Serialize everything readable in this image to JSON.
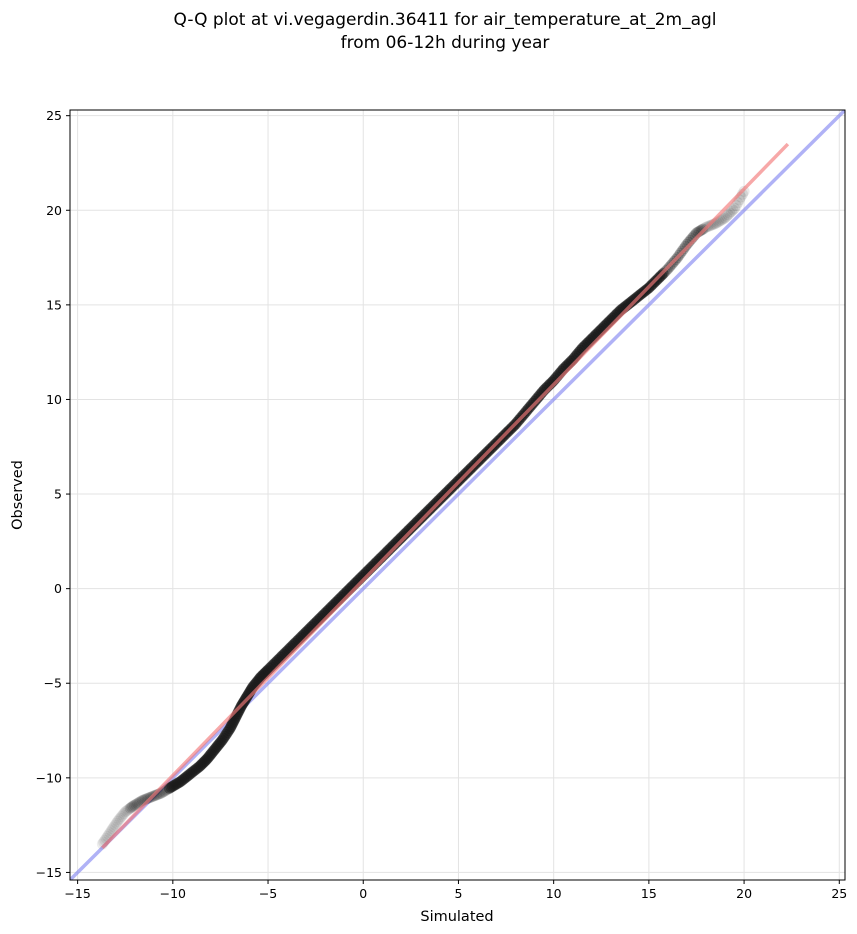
{
  "chart_data": {
    "type": "scatter",
    "title_lines": [
      "Q-Q plot at vi.vegagerdin.36411 for air_temperature_at_2m_agl",
      "from 06-12h during year"
    ],
    "xlabel": "Simulated",
    "ylabel": "Observed",
    "xlim": [
      -15.4,
      25.3
    ],
    "ylim": [
      -15.4,
      25.3
    ],
    "xticks": [
      -15,
      -10,
      -5,
      0,
      5,
      10,
      15,
      20,
      25
    ],
    "yticks": [
      -15,
      -10,
      -5,
      0,
      5,
      10,
      15,
      20,
      25
    ],
    "tick_labels": [
      "−15",
      "−10",
      "−5",
      "0",
      "5",
      "10",
      "15",
      "20",
      "25"
    ],
    "grid": true,
    "reference_line": {
      "x": [
        -15.4,
        25.3
      ],
      "y": [
        -15.4,
        25.3
      ],
      "color": "#7b7ef0"
    },
    "fit_line": {
      "x": [
        -13.7,
        22.3
      ],
      "y": [
        -13.7,
        23.5
      ],
      "color": "#f27a7a"
    },
    "quantile_points": {
      "x": [
        -13.7,
        -13.3,
        -12.9,
        -12.5,
        -12.1,
        -11.6,
        -11.1,
        -10.6,
        -10.1,
        -9.6,
        -9.1,
        -8.6,
        -8.2,
        -7.8,
        -7.4,
        -7.0,
        -6.7,
        -6.4,
        -6.1,
        -5.8,
        -5.4,
        -5.0,
        -4.5,
        -4.0,
        -3.5,
        -3.0,
        -2.5,
        -2.0,
        -1.5,
        -1.0,
        -0.5,
        0.0,
        0.5,
        1.0,
        1.5,
        2.0,
        2.5,
        3.0,
        3.5,
        4.0,
        4.5,
        5.0,
        5.5,
        6.0,
        6.5,
        7.0,
        7.5,
        8.0,
        8.5,
        9.0,
        9.5,
        10.0,
        10.5,
        11.0,
        11.5,
        12.0,
        12.5,
        13.0,
        13.5,
        14.0,
        14.5,
        15.0,
        15.5,
        16.0,
        16.5,
        17.0,
        17.5,
        18.0,
        18.5,
        19.0,
        19.5,
        20.0
      ],
      "y": [
        -13.5,
        -12.9,
        -12.3,
        -11.8,
        -11.5,
        -11.2,
        -11.0,
        -10.8,
        -10.5,
        -10.2,
        -9.8,
        -9.4,
        -9.0,
        -8.5,
        -8.0,
        -7.4,
        -6.8,
        -6.2,
        -5.7,
        -5.2,
        -4.7,
        -4.3,
        -3.8,
        -3.3,
        -2.8,
        -2.3,
        -1.8,
        -1.3,
        -0.8,
        -0.3,
        0.2,
        0.7,
        1.2,
        1.7,
        2.2,
        2.7,
        3.2,
        3.7,
        4.2,
        4.7,
        5.2,
        5.7,
        6.2,
        6.7,
        7.2,
        7.7,
        8.2,
        8.7,
        9.3,
        9.9,
        10.5,
        11.0,
        11.6,
        12.1,
        12.7,
        13.2,
        13.7,
        14.2,
        14.7,
        15.1,
        15.5,
        15.9,
        16.4,
        16.9,
        17.5,
        18.2,
        18.8,
        19.1,
        19.3,
        19.6,
        20.1,
        21.0
      ]
    }
  }
}
